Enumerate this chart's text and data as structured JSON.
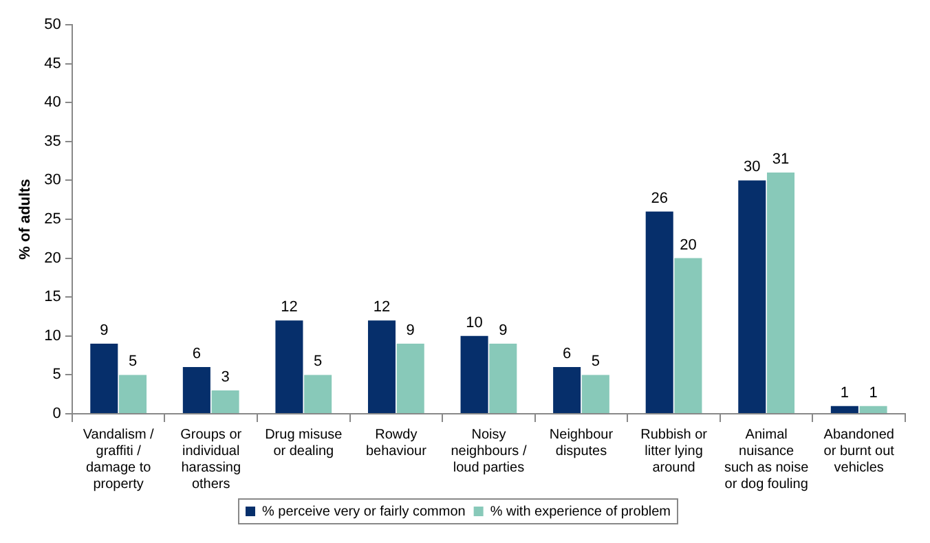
{
  "chart_data": {
    "type": "bar",
    "ylabel": "% of adults",
    "categories": [
      "Vandalism / graffiti / damage to property",
      "Groups or individual harassing others",
      "Drug misuse or dealing",
      "Rowdy behaviour",
      "Noisy neighbours / loud parties",
      "Neighbour disputes",
      "Rubbish or litter lying around",
      "Animal nuisance such as noise or dog fouling",
      "Abandoned or burnt out vehicles"
    ],
    "series": [
      {
        "name": "% perceive very or fairly common",
        "color": "#062f6b",
        "values": [
          9,
          6,
          12,
          12,
          10,
          6,
          26,
          30,
          1
        ]
      },
      {
        "name": "% with experience of problem",
        "color": "#88c9b9",
        "values": [
          5,
          3,
          5,
          9,
          9,
          5,
          20,
          31,
          1
        ]
      }
    ],
    "ylim": [
      0,
      50
    ],
    "yticks": [
      0,
      5,
      10,
      15,
      20,
      25,
      30,
      35,
      40,
      45,
      50
    ],
    "data_labels": true,
    "grid": false,
    "legend": "bottom"
  }
}
